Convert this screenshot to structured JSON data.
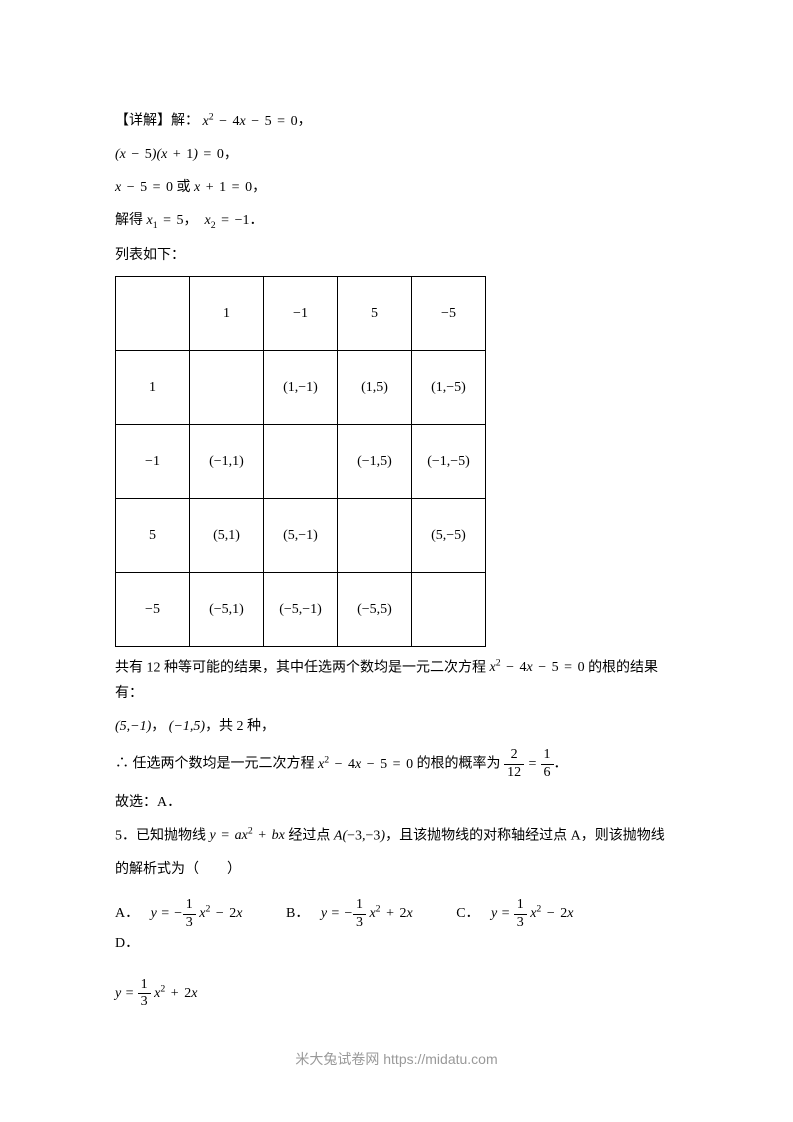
{
  "line1_prefix": "【详解】解：",
  "line1_eq": "x² − 4x − 5 = 0",
  "line1_suffix": "，",
  "line2_eq": "(x − 5)(x + 1) = 0",
  "line2_suffix": "，",
  "line3_eq_a": "x − 5 = 0",
  "line3_mid": " 或 ",
  "line3_eq_b": "x + 1 = 0",
  "line3_suffix": "，",
  "line4_prefix": "解得 ",
  "line4_x1": "x₁ = 5",
  "line4_sep": "，",
  "line4_x2": "x₂ = −1",
  "line4_suffix": "．",
  "line5": "列表如下：",
  "table": {
    "headers_row": [
      "",
      "1",
      "−1",
      "5",
      "−5"
    ],
    "headers_col": [
      "1",
      "−1",
      "5",
      "−5"
    ],
    "cells": [
      [
        "",
        "(1,−1)",
        "(1,5)",
        "(1,−5)"
      ],
      [
        "(−1,1)",
        "",
        "(−1,5)",
        "(−1,−5)"
      ],
      [
        "(5,1)",
        "(5,−1)",
        "",
        "(5,−5)"
      ],
      [
        "(−5,1)",
        "(−5,−1)",
        "(−5,5)",
        ""
      ]
    ]
  },
  "after_table_1a": "共有 12 种等可能的结果，其中任选两个数均是一元二次方程 ",
  "after_table_1_eq": "x² − 4x − 5 = 0",
  "after_table_1b": " 的根的结果有：",
  "after_table_2a": "(5,−1)",
  "after_table_2b": "，",
  "after_table_2c": "(−1,5)",
  "after_table_2d": "，共 2 种，",
  "prob_prefix": "∴ 任选两个数均是一元二次方程 ",
  "prob_eq": "x² − 4x − 5 = 0",
  "prob_mid": " 的根的概率为 ",
  "prob_frac1_top": "2",
  "prob_frac1_bot": "12",
  "prob_eq_sign": " = ",
  "prob_frac2_top": "1",
  "prob_frac2_bot": "6",
  "prob_suffix": "．",
  "conclusion": "故选：A．",
  "q5_prefix": "5．已知抛物线 ",
  "q5_eq": "y = ax² + bx",
  "q5_mid1": " 经过点 ",
  "q5_point": "A(−3,−3)",
  "q5_mid2": "，且该抛物线的对称轴经过点 A，则该抛物线",
  "q5_line2": "的解析式为（　　）",
  "options": {
    "labelA": "A．",
    "labelB": "B．",
    "labelC": "C．",
    "labelD": "D．",
    "fracA_top": "1",
    "fracA_bot": "3",
    "fracB_top": "1",
    "fracB_bot": "3",
    "fracC_top": "1",
    "fracC_bot": "3",
    "fracD_top": "1",
    "fracD_bot": "3",
    "exprA_pre": "y = −",
    "exprA_post": " x² − 2x",
    "exprB_pre": "y = −",
    "exprB_post": " x² + 2x",
    "exprC_pre": "y = ",
    "exprC_post": " x² − 2x",
    "exprD_pre": "y = ",
    "exprD_post": " x² + 2x"
  },
  "footer_text": "米大兔试卷网 https://midatu.com"
}
